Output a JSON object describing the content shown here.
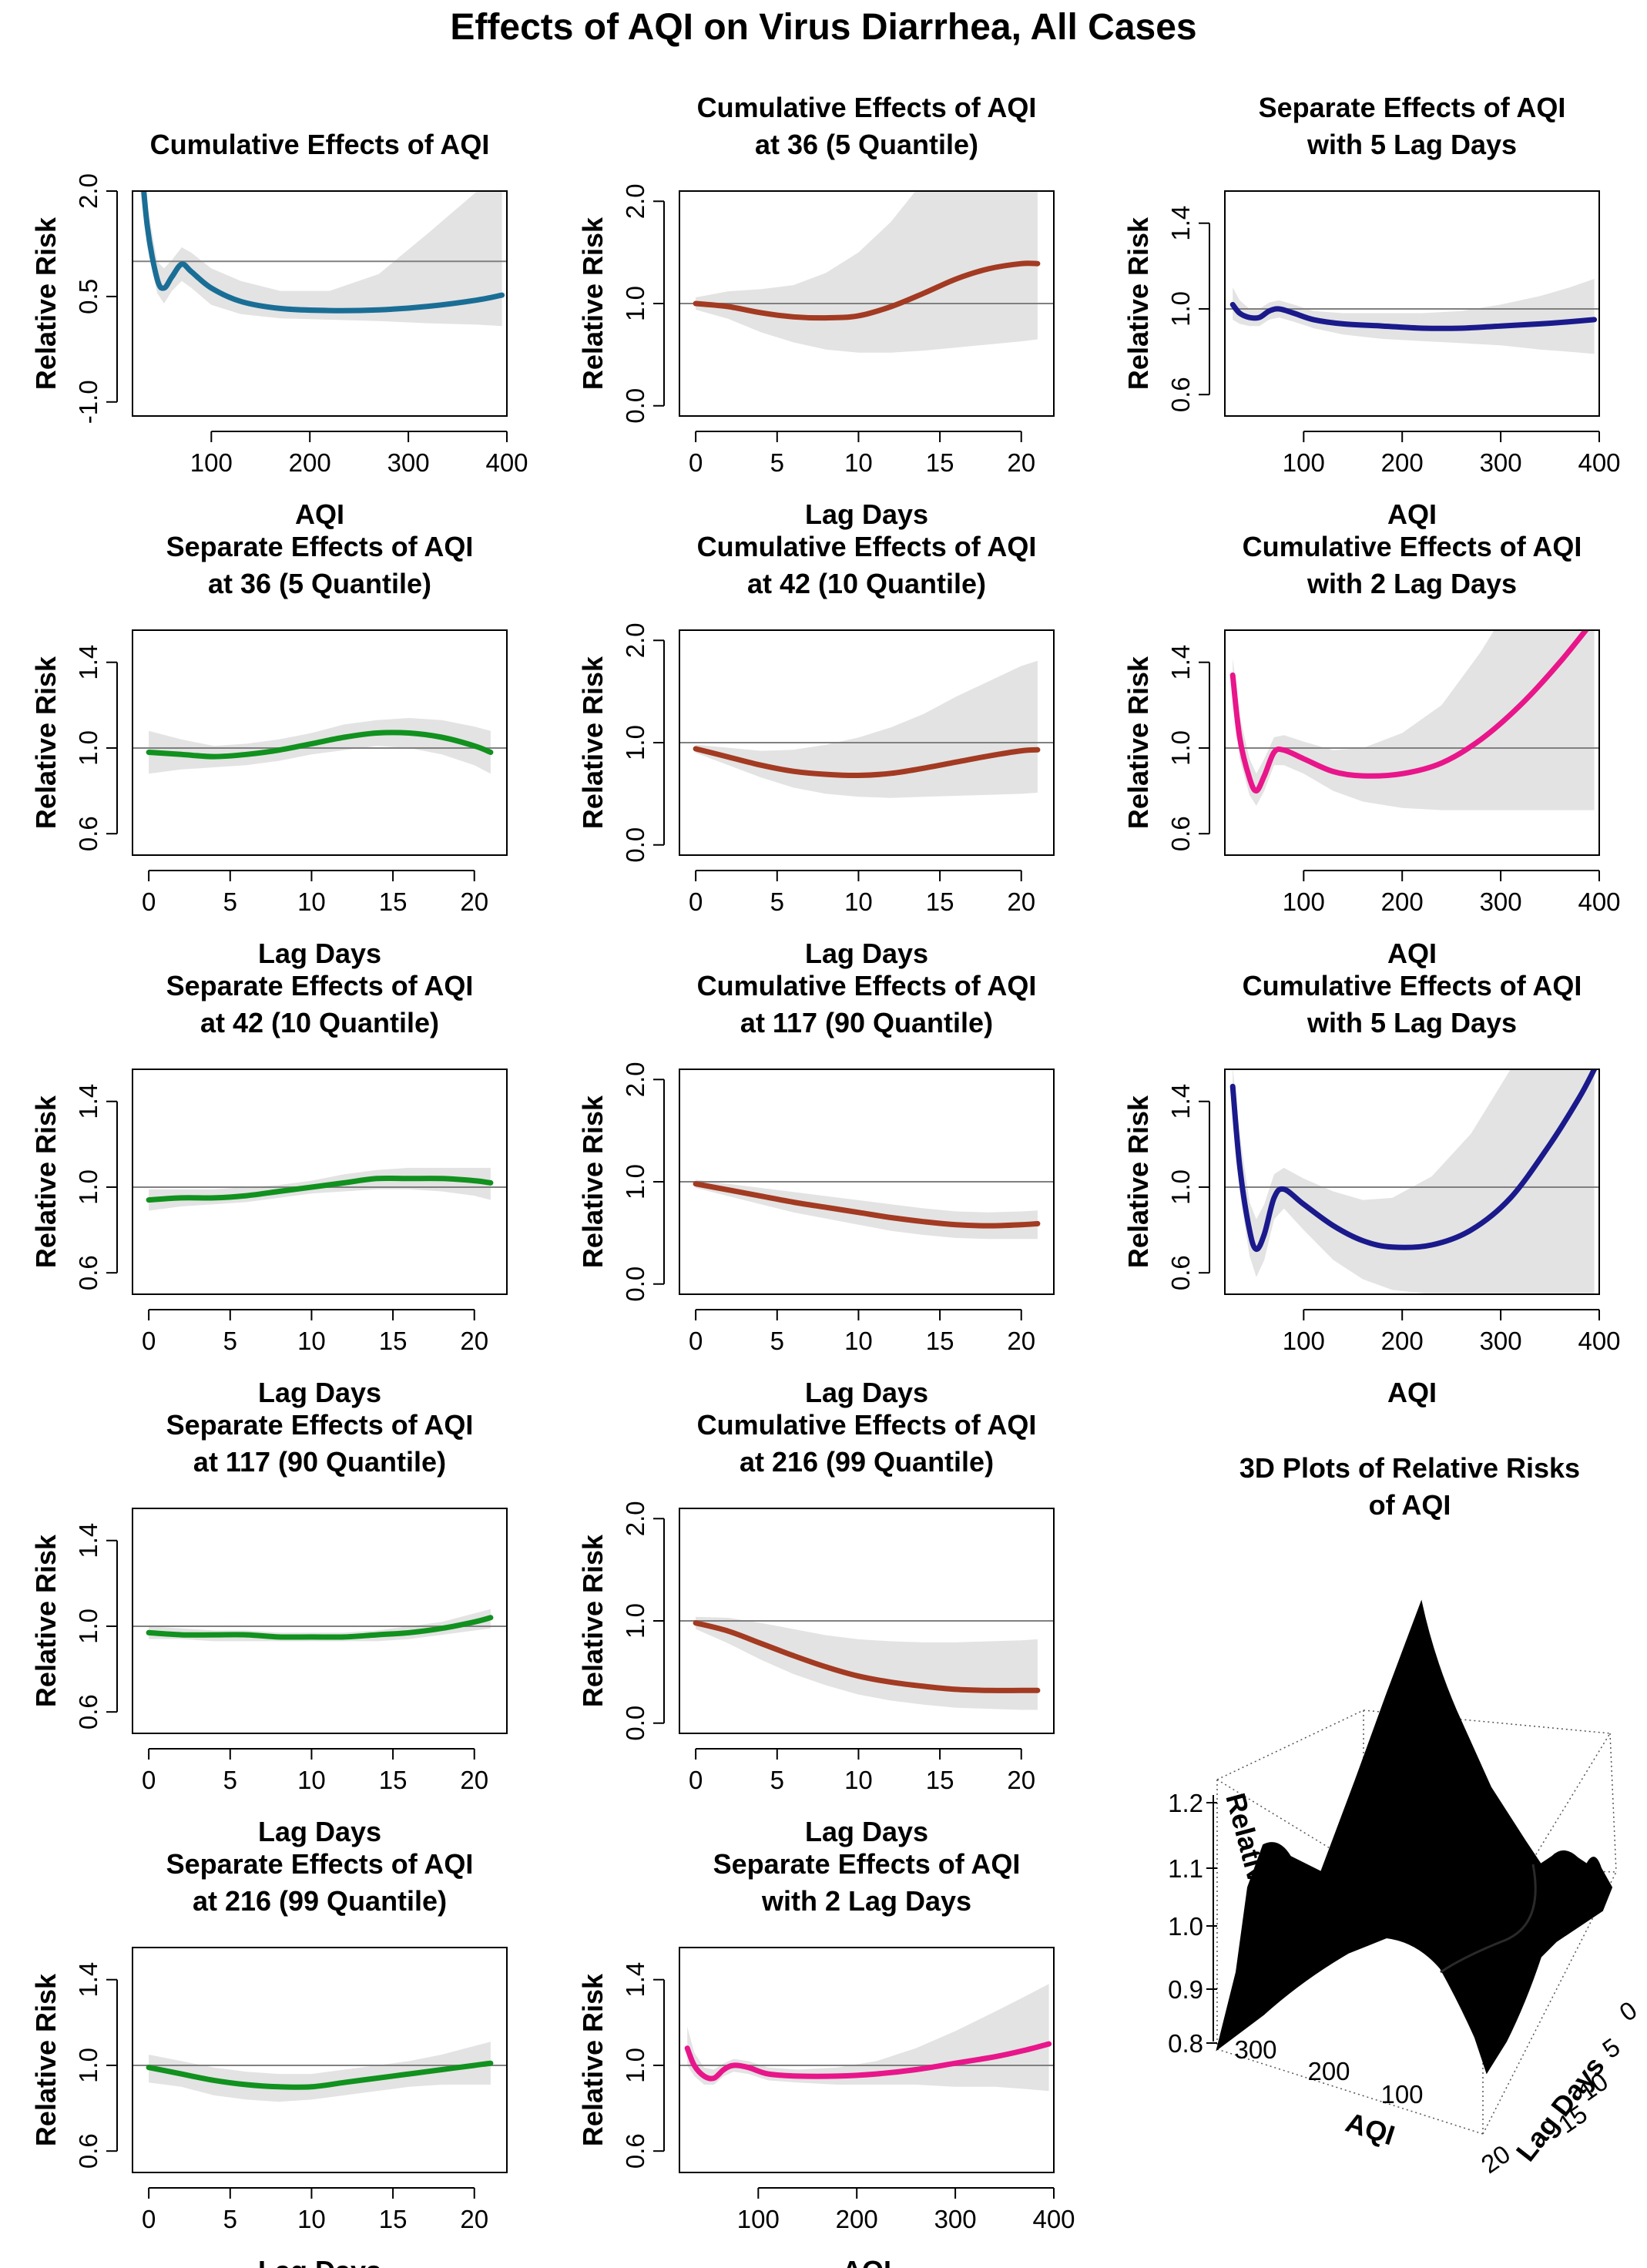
{
  "title": "Effects of AQI on Virus Diarrhea, All Cases",
  "colors": {
    "teal": "#1a6e96",
    "brown": "#a33a22",
    "navy": "#1a1a8c",
    "green": "#11911e",
    "pink": "#e8168a",
    "band": "#e3e3e3",
    "refline": "#808080"
  },
  "chart_data": [
    {
      "id": "p1",
      "type": "line",
      "title": [
        "Cumulative Effects of AQI"
      ],
      "xlabel": "AQI",
      "ylabel": "Relative Risk",
      "xlim": [
        20,
        400
      ],
      "ylim": [
        -1.2,
        2.0
      ],
      "xticks": [
        100,
        200,
        300,
        400
      ],
      "yticks": [
        -1.0,
        0.5,
        2.0
      ],
      "ytick_labels": [
        "-1.0",
        "0.5",
        "2.0"
      ],
      "ref": 1.0,
      "color": "teal",
      "x": [
        28,
        35,
        45,
        52,
        60,
        70,
        80,
        100,
        130,
        170,
        220,
        270,
        320,
        370,
        395
      ],
      "y": [
        2.6,
        1.5,
        0.75,
        0.62,
        0.78,
        0.96,
        0.85,
        0.62,
        0.43,
        0.33,
        0.3,
        0.31,
        0.36,
        0.45,
        0.52
      ],
      "lower": [
        2.0,
        1.2,
        0.55,
        0.4,
        0.58,
        0.72,
        0.62,
        0.38,
        0.25,
        0.19,
        0.17,
        0.15,
        0.12,
        0.1,
        0.08
      ],
      "upper": [
        2.8,
        1.8,
        1.0,
        0.9,
        1.02,
        1.2,
        1.12,
        0.9,
        0.72,
        0.58,
        0.58,
        0.82,
        1.4,
        2.0,
        2.2
      ]
    },
    {
      "id": "p2",
      "type": "line",
      "title": [
        "Cumulative Effects of AQI",
        "at 36 (5 Quantile)"
      ],
      "xlabel": "Lag Days",
      "ylabel": "Relative Risk",
      "xlim": [
        -1,
        22
      ],
      "ylim": [
        -0.1,
        2.1
      ],
      "xticks": [
        0,
        5,
        10,
        15,
        20
      ],
      "yticks": [
        0.0,
        1.0,
        2.0
      ],
      "ytick_labels": [
        "0.0",
        "1.0",
        "2.0"
      ],
      "ref": 1.0,
      "color": "brown",
      "x": [
        0,
        2,
        4,
        6,
        8,
        10,
        12,
        14,
        16,
        18,
        20,
        21
      ],
      "y": [
        1.0,
        0.97,
        0.91,
        0.87,
        0.86,
        0.88,
        0.97,
        1.1,
        1.24,
        1.34,
        1.39,
        1.39
      ],
      "lower": [
        0.94,
        0.85,
        0.72,
        0.62,
        0.55,
        0.52,
        0.52,
        0.54,
        0.57,
        0.6,
        0.63,
        0.65
      ],
      "upper": [
        1.06,
        1.12,
        1.14,
        1.18,
        1.3,
        1.5,
        1.8,
        2.2,
        2.6,
        2.9,
        3.0,
        3.0
      ]
    },
    {
      "id": "p3",
      "type": "line",
      "title": [
        "Separate Effects of AQI",
        "with 5 Lag Days"
      ],
      "xlabel": "AQI",
      "ylabel": "Relative Risk",
      "xlim": [
        20,
        400
      ],
      "ylim": [
        0.5,
        1.55
      ],
      "xticks": [
        100,
        200,
        300,
        400
      ],
      "yticks": [
        0.6,
        1.0,
        1.4
      ],
      "ytick_labels": [
        "0.6",
        "1.0",
        "1.4"
      ],
      "ref": 1.0,
      "color": "navy",
      "x": [
        28,
        35,
        45,
        55,
        65,
        75,
        90,
        110,
        140,
        180,
        220,
        260,
        300,
        340,
        370,
        395
      ],
      "y": [
        1.02,
        0.98,
        0.96,
        0.96,
        0.99,
        1.0,
        0.98,
        0.95,
        0.93,
        0.92,
        0.91,
        0.91,
        0.92,
        0.93,
        0.94,
        0.95
      ],
      "lower": [
        0.95,
        0.93,
        0.92,
        0.92,
        0.95,
        0.96,
        0.94,
        0.91,
        0.88,
        0.86,
        0.85,
        0.84,
        0.83,
        0.81,
        0.8,
        0.79
      ],
      "upper": [
        1.1,
        1.04,
        1.0,
        1.0,
        1.03,
        1.04,
        1.02,
        0.99,
        0.98,
        0.98,
        0.98,
        0.99,
        1.02,
        1.06,
        1.1,
        1.14
      ]
    },
    {
      "id": "p4",
      "type": "line",
      "title": [
        "Separate Effects of AQI",
        "at 36 (5 Quantile)"
      ],
      "xlabel": "Lag Days",
      "ylabel": "Relative Risk",
      "xlim": [
        -1,
        22
      ],
      "ylim": [
        0.5,
        1.55
      ],
      "xticks": [
        0,
        5,
        10,
        15,
        20
      ],
      "yticks": [
        0.6,
        1.0,
        1.4
      ],
      "ytick_labels": [
        "0.6",
        "1.0",
        "1.4"
      ],
      "ref": 1.0,
      "color": "green",
      "x": [
        0,
        2,
        4,
        6,
        8,
        10,
        12,
        14,
        16,
        18,
        20,
        21
      ],
      "y": [
        0.98,
        0.97,
        0.96,
        0.97,
        0.99,
        1.02,
        1.05,
        1.07,
        1.07,
        1.05,
        1.01,
        0.98
      ],
      "lower": [
        0.88,
        0.9,
        0.91,
        0.92,
        0.94,
        0.97,
        0.99,
        1.01,
        1.0,
        0.97,
        0.92,
        0.88
      ],
      "upper": [
        1.08,
        1.04,
        1.01,
        1.02,
        1.04,
        1.07,
        1.11,
        1.13,
        1.14,
        1.13,
        1.1,
        1.08
      ]
    },
    {
      "id": "p5",
      "type": "line",
      "title": [
        "Cumulative Effects of AQI",
        "at 42 (10 Quantile)"
      ],
      "xlabel": "Lag Days",
      "ylabel": "Relative Risk",
      "xlim": [
        -1,
        22
      ],
      "ylim": [
        -0.1,
        2.1
      ],
      "xticks": [
        0,
        5,
        10,
        15,
        20
      ],
      "yticks": [
        0.0,
        1.0,
        2.0
      ],
      "ytick_labels": [
        "0.0",
        "1.0",
        "2.0"
      ],
      "ref": 1.0,
      "color": "brown",
      "x": [
        0,
        2,
        4,
        6,
        8,
        10,
        12,
        14,
        16,
        18,
        20,
        21
      ],
      "y": [
        0.94,
        0.86,
        0.78,
        0.72,
        0.69,
        0.68,
        0.7,
        0.75,
        0.81,
        0.87,
        0.92,
        0.93
      ],
      "lower": [
        0.9,
        0.78,
        0.66,
        0.56,
        0.5,
        0.47,
        0.46,
        0.47,
        0.48,
        0.49,
        0.5,
        0.51
      ],
      "upper": [
        0.98,
        0.95,
        0.92,
        0.93,
        0.98,
        1.05,
        1.15,
        1.28,
        1.45,
        1.6,
        1.75,
        1.8
      ]
    },
    {
      "id": "p6",
      "type": "line",
      "title": [
        "Cumulative Effects of AQI",
        "with 2 Lag Days"
      ],
      "xlabel": "AQI",
      "ylabel": "Relative Risk",
      "xlim": [
        20,
        400
      ],
      "ylim": [
        0.5,
        1.55
      ],
      "xticks": [
        100,
        200,
        300,
        400
      ],
      "yticks": [
        0.6,
        1.0,
        1.4
      ],
      "ytick_labels": [
        "0.6",
        "1.0",
        "1.4"
      ],
      "ref": 1.0,
      "color": "pink",
      "x": [
        28,
        35,
        45,
        52,
        60,
        70,
        80,
        100,
        130,
        160,
        200,
        240,
        280,
        320,
        360,
        395
      ],
      "y": [
        1.34,
        1.05,
        0.86,
        0.8,
        0.87,
        0.98,
        0.99,
        0.95,
        0.89,
        0.87,
        0.88,
        0.93,
        1.04,
        1.2,
        1.4,
        1.6
      ],
      "lower": [
        1.25,
        0.95,
        0.78,
        0.73,
        0.8,
        0.92,
        0.92,
        0.88,
        0.8,
        0.75,
        0.72,
        0.71,
        0.71,
        0.71,
        0.71,
        0.71
      ],
      "upper": [
        1.42,
        1.15,
        0.95,
        0.88,
        0.95,
        1.05,
        1.06,
        1.03,
        0.99,
        1.0,
        1.07,
        1.2,
        1.45,
        1.75,
        2.0,
        2.1
      ]
    },
    {
      "id": "p7",
      "type": "line",
      "title": [
        "Separate Effects of AQI",
        "at 42 (10 Quantile)"
      ],
      "xlabel": "Lag Days",
      "ylabel": "Relative Risk",
      "xlim": [
        -1,
        22
      ],
      "ylim": [
        0.5,
        1.55
      ],
      "xticks": [
        0,
        5,
        10,
        15,
        20
      ],
      "yticks": [
        0.6,
        1.0,
        1.4
      ],
      "ytick_labels": [
        "0.6",
        "1.0",
        "1.4"
      ],
      "ref": 1.0,
      "color": "green",
      "x": [
        0,
        2,
        4,
        6,
        8,
        10,
        12,
        14,
        16,
        18,
        20,
        21
      ],
      "y": [
        0.94,
        0.95,
        0.95,
        0.96,
        0.98,
        1.0,
        1.02,
        1.04,
        1.04,
        1.04,
        1.03,
        1.02
      ],
      "lower": [
        0.89,
        0.91,
        0.92,
        0.93,
        0.95,
        0.97,
        0.98,
        0.99,
        0.99,
        0.98,
        0.96,
        0.94
      ],
      "upper": [
        0.99,
        0.99,
        0.99,
        1.0,
        1.01,
        1.03,
        1.06,
        1.08,
        1.09,
        1.09,
        1.09,
        1.09
      ]
    },
    {
      "id": "p8",
      "type": "line",
      "title": [
        "Cumulative Effects of AQI",
        "at 117 (90 Quantile)"
      ],
      "xlabel": "Lag Days",
      "ylabel": "Relative Risk",
      "xlim": [
        -1,
        22
      ],
      "ylim": [
        -0.1,
        2.1
      ],
      "xticks": [
        0,
        5,
        10,
        15,
        20
      ],
      "yticks": [
        0.0,
        1.0,
        2.0
      ],
      "ytick_labels": [
        "0.0",
        "1.0",
        "2.0"
      ],
      "ref": 1.0,
      "color": "brown",
      "x": [
        0,
        2,
        4,
        6,
        8,
        10,
        12,
        14,
        16,
        18,
        20,
        21
      ],
      "y": [
        0.98,
        0.92,
        0.86,
        0.8,
        0.75,
        0.7,
        0.65,
        0.61,
        0.58,
        0.57,
        0.58,
        0.59
      ],
      "lower": [
        0.94,
        0.86,
        0.78,
        0.7,
        0.64,
        0.58,
        0.52,
        0.48,
        0.45,
        0.44,
        0.44,
        0.44
      ],
      "upper": [
        1.02,
        0.98,
        0.94,
        0.9,
        0.86,
        0.82,
        0.78,
        0.74,
        0.71,
        0.7,
        0.71,
        0.72
      ]
    },
    {
      "id": "p9",
      "type": "line",
      "title": [
        "Cumulative Effects of AQI",
        "with 5 Lag Days"
      ],
      "xlabel": "AQI",
      "ylabel": "Relative Risk",
      "xlim": [
        20,
        400
      ],
      "ylim": [
        0.5,
        1.55
      ],
      "xticks": [
        100,
        200,
        300,
        400
      ],
      "yticks": [
        0.6,
        1.0,
        1.4
      ],
      "ytick_labels": [
        "0.6",
        "1.0",
        "1.4"
      ],
      "ref": 1.0,
      "color": "navy",
      "x": [
        28,
        35,
        45,
        52,
        60,
        70,
        80,
        100,
        130,
        160,
        190,
        230,
        270,
        310,
        350,
        380,
        395
      ],
      "y": [
        1.47,
        1.1,
        0.8,
        0.71,
        0.78,
        0.95,
        0.99,
        0.92,
        0.82,
        0.75,
        0.72,
        0.73,
        0.8,
        0.95,
        1.2,
        1.42,
        1.55
      ],
      "lower": [
        1.35,
        0.98,
        0.68,
        0.58,
        0.66,
        0.85,
        0.9,
        0.8,
        0.66,
        0.57,
        0.52,
        0.5,
        0.49,
        0.48,
        0.47,
        0.46,
        0.45
      ],
      "upper": [
        1.56,
        1.25,
        0.93,
        0.85,
        0.92,
        1.06,
        1.09,
        1.04,
        0.98,
        0.94,
        0.95,
        1.05,
        1.25,
        1.55,
        1.8,
        1.9,
        1.95
      ]
    },
    {
      "id": "p10",
      "type": "line",
      "title": [
        "Separate Effects of AQI",
        "at 117 (90 Quantile)"
      ],
      "xlabel": "Lag Days",
      "ylabel": "Relative Risk",
      "xlim": [
        -1,
        22
      ],
      "ylim": [
        0.5,
        1.55
      ],
      "xticks": [
        0,
        5,
        10,
        15,
        20
      ],
      "yticks": [
        0.6,
        1.0,
        1.4
      ],
      "ytick_labels": [
        "0.6",
        "1.0",
        "1.4"
      ],
      "ref": 1.0,
      "color": "green",
      "x": [
        0,
        2,
        4,
        6,
        8,
        10,
        12,
        14,
        16,
        18,
        20,
        21
      ],
      "y": [
        0.97,
        0.96,
        0.96,
        0.96,
        0.95,
        0.95,
        0.95,
        0.96,
        0.97,
        0.99,
        1.02,
        1.04
      ],
      "lower": [
        0.94,
        0.94,
        0.93,
        0.93,
        0.93,
        0.93,
        0.93,
        0.93,
        0.94,
        0.96,
        0.98,
        0.99
      ],
      "upper": [
        1.0,
        0.99,
        0.98,
        0.98,
        0.97,
        0.97,
        0.97,
        0.98,
        1.0,
        1.02,
        1.06,
        1.08
      ]
    },
    {
      "id": "p11",
      "type": "line",
      "title": [
        "Cumulative Effects of AQI",
        "at 216 (99 Quantile)"
      ],
      "xlabel": "Lag Days",
      "ylabel": "Relative Risk",
      "xlim": [
        -1,
        22
      ],
      "ylim": [
        -0.1,
        2.1
      ],
      "xticks": [
        0,
        5,
        10,
        15,
        20
      ],
      "yticks": [
        0.0,
        1.0,
        2.0
      ],
      "ytick_labels": [
        "0.0",
        "1.0",
        "2.0"
      ],
      "ref": 1.0,
      "color": "brown",
      "x": [
        0,
        2,
        4,
        6,
        8,
        10,
        12,
        14,
        16,
        18,
        20,
        21
      ],
      "y": [
        0.98,
        0.9,
        0.78,
        0.66,
        0.55,
        0.46,
        0.4,
        0.36,
        0.33,
        0.32,
        0.32,
        0.32
      ],
      "lower": [
        0.92,
        0.78,
        0.62,
        0.48,
        0.37,
        0.28,
        0.22,
        0.18,
        0.15,
        0.14,
        0.13,
        0.13
      ],
      "upper": [
        1.04,
        1.03,
        0.98,
        0.92,
        0.86,
        0.82,
        0.8,
        0.79,
        0.79,
        0.8,
        0.81,
        0.82
      ]
    },
    {
      "id": "p12",
      "type": "line",
      "title": [
        "Separate Effects of AQI",
        "at 216 (99 Quantile)"
      ],
      "xlabel": "Lag Days",
      "ylabel": "Relative Risk",
      "xlim": [
        -1,
        22
      ],
      "ylim": [
        0.5,
        1.55
      ],
      "xticks": [
        0,
        5,
        10,
        15,
        20
      ],
      "yticks": [
        0.6,
        1.0,
        1.4
      ],
      "ytick_labels": [
        "0.6",
        "1.0",
        "1.4"
      ],
      "ref": 1.0,
      "color": "green",
      "x": [
        0,
        2,
        4,
        6,
        8,
        10,
        12,
        14,
        16,
        18,
        20,
        21
      ],
      "y": [
        0.99,
        0.96,
        0.93,
        0.91,
        0.9,
        0.9,
        0.92,
        0.94,
        0.96,
        0.98,
        1.0,
        1.01
      ],
      "lower": [
        0.92,
        0.9,
        0.86,
        0.84,
        0.83,
        0.84,
        0.86,
        0.88,
        0.9,
        0.91,
        0.91,
        0.91
      ],
      "upper": [
        1.05,
        1.02,
        0.99,
        0.97,
        0.96,
        0.96,
        0.98,
        1.0,
        1.02,
        1.05,
        1.09,
        1.11
      ]
    },
    {
      "id": "p13",
      "type": "line",
      "title": [
        "Separate Effects of AQI",
        "with 2 Lag Days"
      ],
      "xlabel": "AQI",
      "ylabel": "Relative Risk",
      "xlim": [
        20,
        400
      ],
      "ylim": [
        0.5,
        1.55
      ],
      "xticks": [
        100,
        200,
        300,
        400
      ],
      "yticks": [
        0.6,
        1.0,
        1.4
      ],
      "ytick_labels": [
        "0.6",
        "1.0",
        "1.4"
      ],
      "ref": 1.0,
      "color": "pink",
      "x": [
        28,
        35,
        45,
        55,
        65,
        75,
        90,
        110,
        140,
        180,
        220,
        260,
        300,
        340,
        370,
        395
      ],
      "y": [
        1.08,
        1.0,
        0.95,
        0.94,
        0.98,
        1.0,
        0.99,
        0.96,
        0.95,
        0.95,
        0.96,
        0.98,
        1.01,
        1.04,
        1.07,
        1.1
      ],
      "lower": [
        1.0,
        0.95,
        0.91,
        0.91,
        0.95,
        0.97,
        0.96,
        0.93,
        0.92,
        0.91,
        0.91,
        0.91,
        0.9,
        0.9,
        0.89,
        0.88
      ],
      "upper": [
        1.18,
        1.06,
        0.99,
        0.98,
        1.01,
        1.03,
        1.02,
        0.99,
        0.98,
        0.99,
        1.02,
        1.08,
        1.16,
        1.25,
        1.32,
        1.38
      ]
    },
    {
      "id": "p14",
      "type": "surface",
      "title": [
        "3D Plots of Relative Risks",
        "of AQI"
      ],
      "xlabel": "AQI",
      "ylabel": "Lag Days",
      "zlabel": "Relative Risk",
      "xticks": [
        100,
        200,
        300
      ],
      "yticks": [
        0,
        5,
        10,
        15,
        20
      ],
      "zticks": [
        "0.8",
        "0.9",
        "1.0",
        "1.1",
        "1.2"
      ]
    }
  ]
}
